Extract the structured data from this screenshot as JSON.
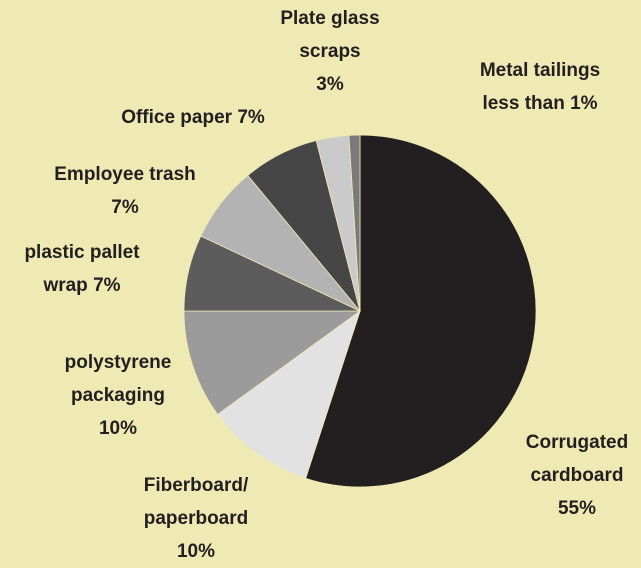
{
  "chart_data": {
    "type": "pie",
    "categories": [
      "Corrugated cardboard",
      "Fiberboard/ paperboard",
      "polystyrene packaging",
      "plastic pallet wrap",
      "Employee trash",
      "Office paper",
      "Plate glass scraps",
      "Metal tailings"
    ],
    "values": [
      55,
      10,
      10,
      7,
      7,
      7,
      3,
      1
    ],
    "value_labels": [
      "55%",
      "10%",
      "10%",
      "7%",
      "7%",
      "7%",
      "3%",
      "less than 1%"
    ],
    "colors": [
      "#231f20",
      "#e2e2e2",
      "#9b9b9b",
      "#5c5c5c",
      "#b3b3b3",
      "#464646",
      "#cacaca",
      "#7a7a7a"
    ]
  }
}
